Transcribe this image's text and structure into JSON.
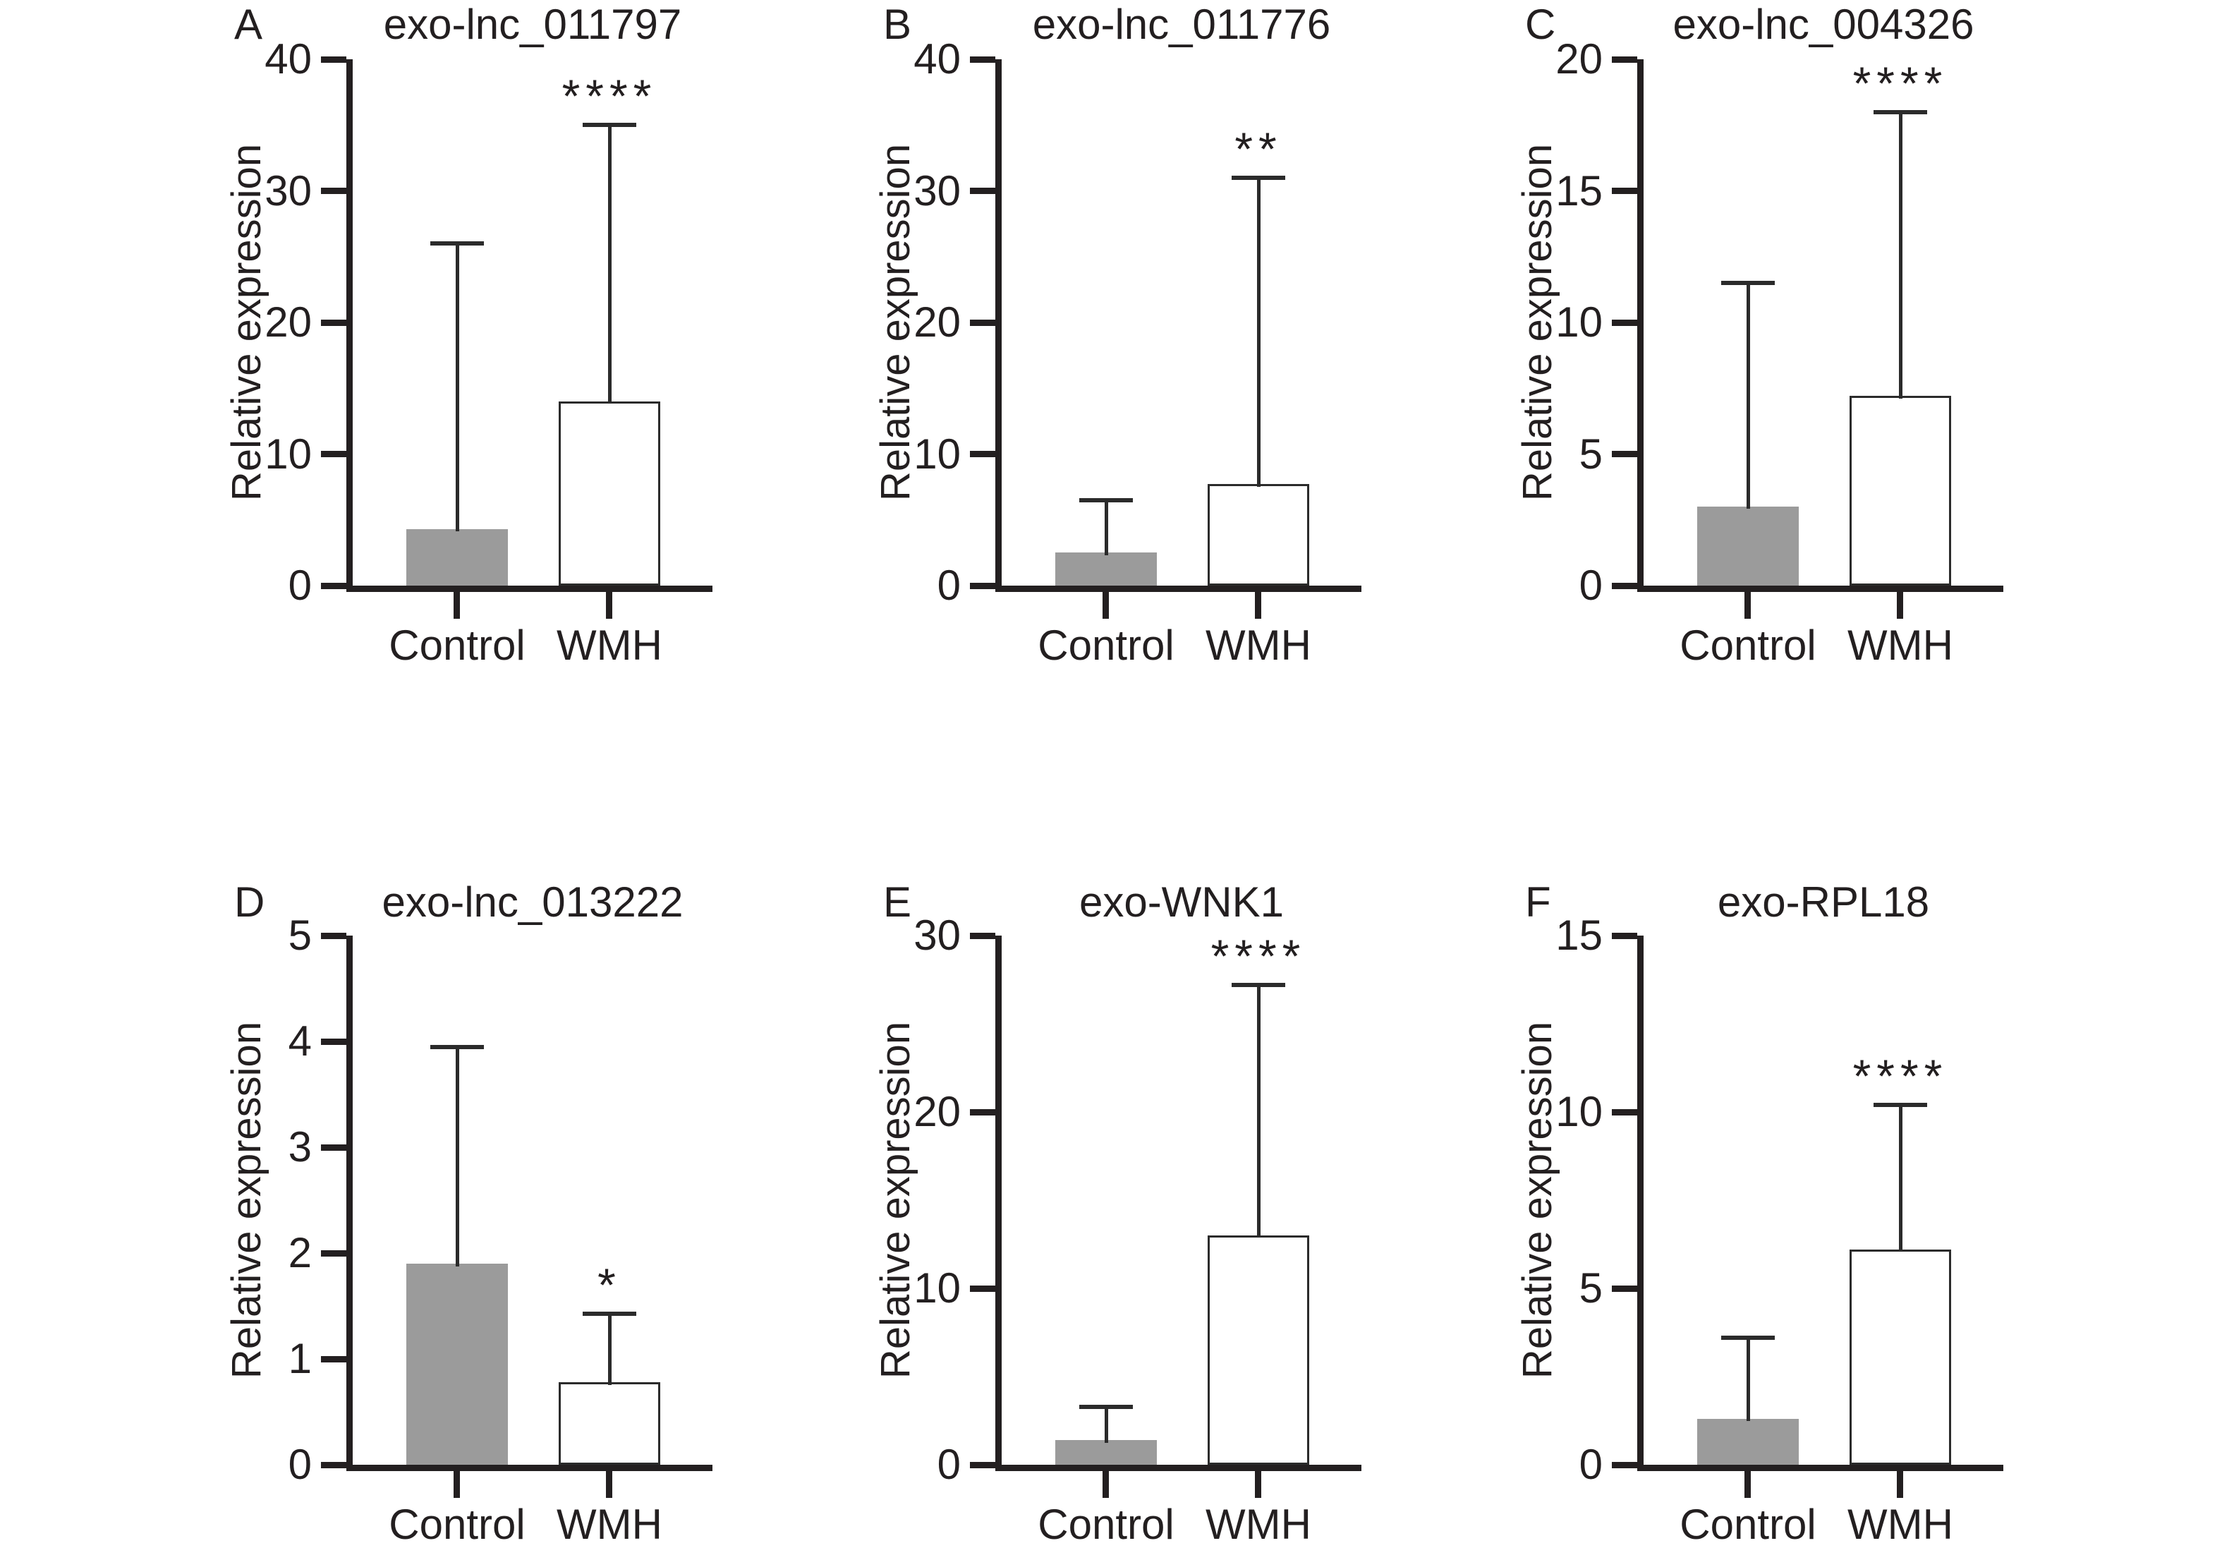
{
  "figure": {
    "ylabel": "Relative expression",
    "background_color": "#ffffff",
    "axis_color": "#231f20",
    "text_color": "#231f20",
    "control_fill_color": "#9b9b9b",
    "wmh_fill_color": "#ffffff",
    "wmh_border_color": "#2b2b2b",
    "error_bar_color": "#2b2b2b",
    "categories": [
      "Control",
      "WMH"
    ]
  },
  "chart_data": [
    {
      "type": "bar",
      "panel_label": "A",
      "title": "exo-lnc_011797",
      "ylabel": "Relative expression",
      "xlabel": "",
      "ylim": [
        0,
        40
      ],
      "yticks": [
        0,
        10,
        20,
        30,
        40
      ],
      "categories": [
        "Control",
        "WMH"
      ],
      "bars": [
        {
          "label": "Control",
          "mean": 4.3,
          "error_top": 26
        },
        {
          "label": "WMH",
          "mean": 14,
          "error_top": 35
        }
      ],
      "significance": "****",
      "significance_on": "WMH"
    },
    {
      "type": "bar",
      "panel_label": "B",
      "title": "exo-lnc_011776",
      "ylabel": "Relative expression",
      "xlabel": "",
      "ylim": [
        0,
        40
      ],
      "yticks": [
        0,
        10,
        20,
        30,
        40
      ],
      "categories": [
        "Control",
        "WMH"
      ],
      "bars": [
        {
          "label": "Control",
          "mean": 2.5,
          "error_top": 6.5
        },
        {
          "label": "WMH",
          "mean": 7.7,
          "error_top": 31
        }
      ],
      "significance": "**",
      "significance_on": "WMH"
    },
    {
      "type": "bar",
      "panel_label": "C",
      "title": "exo-lnc_004326",
      "ylabel": "Relative expression",
      "xlabel": "",
      "ylim": [
        0,
        20
      ],
      "yticks": [
        0,
        5,
        10,
        15,
        20
      ],
      "categories": [
        "Control",
        "WMH"
      ],
      "bars": [
        {
          "label": "Control",
          "mean": 3.0,
          "error_top": 11.5
        },
        {
          "label": "WMH",
          "mean": 7.2,
          "error_top": 18
        }
      ],
      "significance": "****",
      "significance_on": "WMH"
    },
    {
      "type": "bar",
      "panel_label": "D",
      "title": "exo-lnc_013222",
      "ylabel": "Relative expression",
      "xlabel": "",
      "ylim": [
        0,
        5
      ],
      "yticks": [
        0,
        1,
        2,
        3,
        4,
        5
      ],
      "categories": [
        "Control",
        "WMH"
      ],
      "bars": [
        {
          "label": "Control",
          "mean": 1.9,
          "error_top": 3.95
        },
        {
          "label": "WMH",
          "mean": 0.78,
          "error_top": 1.43
        }
      ],
      "significance": "*",
      "significance_on": "WMH"
    },
    {
      "type": "bar",
      "panel_label": "E",
      "title": "exo-WNK1",
      "ylabel": "Relative expression",
      "xlabel": "",
      "ylim": [
        0,
        30
      ],
      "yticks": [
        0,
        10,
        20,
        30
      ],
      "categories": [
        "Control",
        "WMH"
      ],
      "bars": [
        {
          "label": "Control",
          "mean": 1.4,
          "error_top": 3.3
        },
        {
          "label": "WMH",
          "mean": 13,
          "error_top": 27.2
        }
      ],
      "significance": "****",
      "significance_on": "WMH"
    },
    {
      "type": "bar",
      "panel_label": "F",
      "title": "exo-RPL18",
      "ylabel": "Relative expression",
      "xlabel": "",
      "ylim": [
        0,
        15
      ],
      "yticks": [
        0,
        5,
        10,
        15
      ],
      "categories": [
        "Control",
        "WMH"
      ],
      "bars": [
        {
          "label": "Control",
          "mean": 1.3,
          "error_top": 3.6
        },
        {
          "label": "WMH",
          "mean": 6.1,
          "error_top": 10.2
        }
      ],
      "significance": "****",
      "significance_on": "WMH"
    }
  ]
}
